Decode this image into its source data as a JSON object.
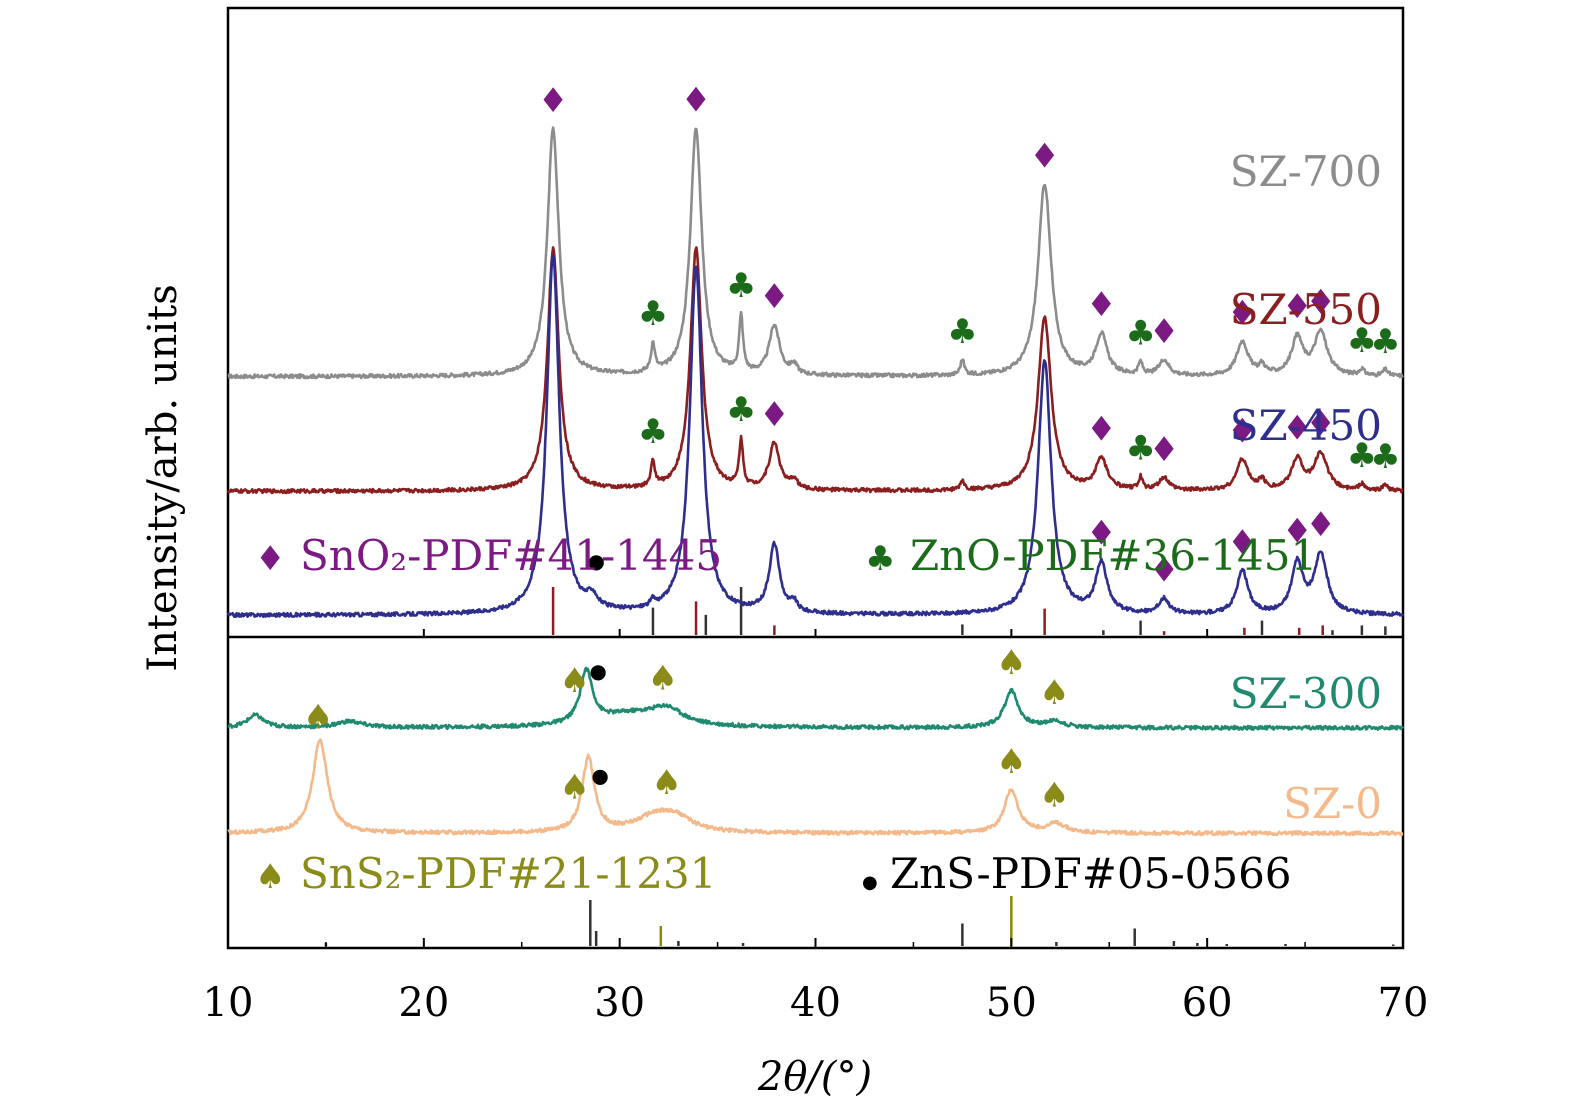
{
  "chart_data": {
    "type": "line",
    "xlabel": "2θ/(°)",
    "ylabel": "Intensity/arb. units",
    "xlim": [
      10,
      70
    ],
    "xticks": [
      "10",
      "20",
      "30",
      "40",
      "50",
      "60",
      "70"
    ],
    "panels": [
      "upper",
      "lower"
    ],
    "series": [
      {
        "name": "SZ-700",
        "panel": "upper",
        "color": "#8c8c8c",
        "baseline": 0.84,
        "peaks": [
          [
            26.6,
            0.8,
            0.35
          ],
          [
            31.7,
            0.09,
            0.12
          ],
          [
            33.9,
            0.8,
            0.35
          ],
          [
            36.2,
            0.18,
            0.12
          ],
          [
            37.9,
            0.16,
            0.32
          ],
          [
            38.9,
            0.03,
            0.2
          ],
          [
            47.5,
            0.05,
            0.12
          ],
          [
            51.7,
            0.62,
            0.4
          ],
          [
            54.6,
            0.13,
            0.35
          ],
          [
            56.6,
            0.04,
            0.12
          ],
          [
            57.8,
            0.05,
            0.3
          ],
          [
            61.8,
            0.11,
            0.35
          ],
          [
            62.8,
            0.03,
            0.2
          ],
          [
            64.6,
            0.12,
            0.35
          ],
          [
            65.8,
            0.14,
            0.4
          ],
          [
            67.9,
            0.02,
            0.15
          ],
          [
            69.1,
            0.02,
            0.15
          ]
        ]
      },
      {
        "name": "SZ-550",
        "panel": "upper",
        "color": "#8b1e1e",
        "baseline": 0.47,
        "peaks": [
          [
            26.6,
            0.78,
            0.35
          ],
          [
            31.7,
            0.08,
            0.12
          ],
          [
            33.9,
            0.78,
            0.35
          ],
          [
            36.2,
            0.15,
            0.12
          ],
          [
            37.9,
            0.15,
            0.32
          ],
          [
            38.9,
            0.03,
            0.2
          ],
          [
            47.5,
            0.03,
            0.12
          ],
          [
            51.7,
            0.56,
            0.4
          ],
          [
            54.6,
            0.1,
            0.35
          ],
          [
            56.6,
            0.04,
            0.12
          ],
          [
            57.8,
            0.04,
            0.3
          ],
          [
            61.8,
            0.1,
            0.35
          ],
          [
            62.8,
            0.03,
            0.2
          ],
          [
            64.6,
            0.1,
            0.35
          ],
          [
            65.8,
            0.12,
            0.4
          ],
          [
            67.9,
            0.02,
            0.15
          ],
          [
            69.1,
            0.02,
            0.15
          ]
        ]
      },
      {
        "name": "SZ-450",
        "panel": "upper",
        "color": "#2e2e8f",
        "baseline": 0.07,
        "peaks": [
          [
            26.6,
            1.16,
            0.38
          ],
          [
            28.6,
            0.04,
            0.3
          ],
          [
            31.7,
            0.02,
            0.15
          ],
          [
            33.9,
            1.12,
            0.38
          ],
          [
            37.9,
            0.22,
            0.32
          ],
          [
            38.9,
            0.03,
            0.2
          ],
          [
            51.7,
            0.82,
            0.4
          ],
          [
            54.6,
            0.16,
            0.35
          ],
          [
            57.8,
            0.05,
            0.3
          ],
          [
            61.8,
            0.14,
            0.35
          ],
          [
            64.6,
            0.16,
            0.35
          ],
          [
            65.8,
            0.19,
            0.4
          ]
        ]
      },
      {
        "name": "SZ-300",
        "panel": "lower",
        "color": "#1f8a70",
        "baseline": 0.71,
        "peaks": [
          [
            11.4,
            0.04,
            0.5
          ],
          [
            16.2,
            0.02,
            0.8
          ],
          [
            28.3,
            0.17,
            0.38
          ],
          [
            30.5,
            0.04,
            2.0
          ],
          [
            32.4,
            0.05,
            1.0
          ],
          [
            50.0,
            0.12,
            0.42
          ],
          [
            52.2,
            0.02,
            0.6
          ]
        ]
      },
      {
        "name": "SZ-0",
        "panel": "lower",
        "color": "#f3b98a",
        "baseline": 0.37,
        "peaks": [
          [
            14.7,
            0.3,
            0.45
          ],
          [
            28.4,
            0.24,
            0.38
          ],
          [
            31.8,
            0.05,
            1.2
          ],
          [
            32.9,
            0.04,
            1.0
          ],
          [
            50.0,
            0.14,
            0.42
          ],
          [
            52.3,
            0.03,
            0.6
          ]
        ]
      }
    ],
    "reference_sticks": [
      {
        "panel": "upper",
        "entries": [
          [
            26.6,
            1.0,
            "#8b1e1e"
          ],
          [
            31.7,
            0.57,
            "#333333"
          ],
          [
            33.9,
            0.7,
            "#8b1e1e"
          ],
          [
            34.4,
            0.42,
            "#333333"
          ],
          [
            36.2,
            1.0,
            "#333333"
          ],
          [
            37.9,
            0.2,
            "#8b1e1e"
          ],
          [
            47.5,
            0.22,
            "#333333"
          ],
          [
            51.7,
            0.55,
            "#8b1e1e"
          ],
          [
            54.7,
            0.1,
            "#333333"
          ],
          [
            56.6,
            0.3,
            "#333333"
          ],
          [
            57.8,
            0.08,
            "#8b1e1e"
          ],
          [
            61.9,
            0.15,
            "#8b1e1e"
          ],
          [
            62.8,
            0.3,
            "#333333"
          ],
          [
            64.7,
            0.15,
            "#8b1e1e"
          ],
          [
            65.9,
            0.2,
            "#8b1e1e"
          ],
          [
            66.4,
            0.1,
            "#333333"
          ],
          [
            67.9,
            0.2,
            "#333333"
          ],
          [
            69.1,
            0.18,
            "#333333"
          ]
        ]
      },
      {
        "panel": "lower",
        "entries": [
          [
            15.0,
            0.06,
            "#333333"
          ],
          [
            28.5,
            0.92,
            "#333333"
          ],
          [
            28.8,
            0.3,
            "#333333"
          ],
          [
            32.1,
            0.4,
            "#8b8b00"
          ],
          [
            33.0,
            0.1,
            "#333333"
          ],
          [
            36.3,
            0.06,
            "#333333"
          ],
          [
            47.5,
            0.45,
            "#333333"
          ],
          [
            50.0,
            1.0,
            "#8b8b00"
          ],
          [
            52.3,
            0.08,
            "#333333"
          ],
          [
            56.3,
            0.35,
            "#333333"
          ],
          [
            58.3,
            0.1,
            "#333333"
          ],
          [
            59.5,
            0.06,
            "#333333"
          ],
          [
            61.0,
            0.04,
            "#333333"
          ],
          [
            64.0,
            0.04,
            "#333333"
          ],
          [
            69.5,
            0.03,
            "#333333"
          ]
        ]
      }
    ],
    "series_labels": [
      {
        "text": "SZ-700",
        "color": "#8c8c8c"
      },
      {
        "text": "SZ-550",
        "color": "#8b1e1e"
      },
      {
        "text": "SZ-450",
        "color": "#2e2e8f"
      },
      {
        "text": "SZ-300",
        "color": "#1f8a70"
      },
      {
        "text": "SZ-0",
        "color": "#f3b98a"
      }
    ],
    "legend": [
      {
        "symbol": "♦",
        "text": "SnO₂-PDF#41-1445",
        "color": "#7b1a82"
      },
      {
        "symbol": "♣",
        "text": "ZnO-PDF#36-1451",
        "color": "#1b6b1b"
      },
      {
        "symbol": "♠",
        "text": "SnS₂-PDF#21-1231",
        "color": "#8b8b1a"
      },
      {
        "symbol": "●",
        "text": "ZnS-PDF#05-0566",
        "color": "#000000"
      }
    ],
    "markers": [
      {
        "symbol": "♦",
        "color": "#7b1a82",
        "x": 26.6,
        "series": "SZ-700"
      },
      {
        "symbol": "♦",
        "color": "#7b1a82",
        "x": 33.9,
        "series": "SZ-700"
      },
      {
        "symbol": "♦",
        "color": "#7b1a82",
        "x": 51.7,
        "series": "SZ-700"
      },
      {
        "symbol": "♣",
        "color": "#1b6b1b",
        "x": 31.7,
        "series": "SZ-700"
      },
      {
        "symbol": "♣",
        "color": "#1b6b1b",
        "x": 36.2,
        "series": "SZ-700"
      },
      {
        "symbol": "♦",
        "color": "#7b1a82",
        "x": 37.9,
        "series": "SZ-700"
      },
      {
        "symbol": "♣",
        "color": "#1b6b1b",
        "x": 47.5,
        "series": "SZ-700"
      },
      {
        "symbol": "♦",
        "color": "#7b1a82",
        "x": 54.6,
        "series": "SZ-700"
      },
      {
        "symbol": "♣",
        "color": "#1b6b1b",
        "x": 56.6,
        "series": "SZ-700"
      },
      {
        "symbol": "♦",
        "color": "#7b1a82",
        "x": 57.8,
        "series": "SZ-700"
      },
      {
        "symbol": "♦",
        "color": "#7b1a82",
        "x": 61.8,
        "series": "SZ-700"
      },
      {
        "symbol": "♦",
        "color": "#7b1a82",
        "x": 64.6,
        "series": "SZ-700"
      },
      {
        "symbol": "♦",
        "color": "#7b1a82",
        "x": 65.8,
        "series": "SZ-700"
      },
      {
        "symbol": "♣",
        "color": "#1b6b1b",
        "x": 67.9,
        "series": "SZ-700"
      },
      {
        "symbol": "♣",
        "color": "#1b6b1b",
        "x": 69.1,
        "series": "SZ-700"
      },
      {
        "symbol": "♣",
        "color": "#1b6b1b",
        "x": 31.7,
        "series": "SZ-550"
      },
      {
        "symbol": "♣",
        "color": "#1b6b1b",
        "x": 36.2,
        "series": "SZ-550"
      },
      {
        "symbol": "♦",
        "color": "#7b1a82",
        "x": 37.9,
        "series": "SZ-550"
      },
      {
        "symbol": "♦",
        "color": "#7b1a82",
        "x": 54.6,
        "series": "SZ-550"
      },
      {
        "symbol": "♣",
        "color": "#1b6b1b",
        "x": 56.6,
        "series": "SZ-550"
      },
      {
        "symbol": "♦",
        "color": "#7b1a82",
        "x": 57.8,
        "series": "SZ-550"
      },
      {
        "symbol": "♦",
        "color": "#7b1a82",
        "x": 61.8,
        "series": "SZ-550"
      },
      {
        "symbol": "♦",
        "color": "#7b1a82",
        "x": 64.6,
        "series": "SZ-550"
      },
      {
        "symbol": "♦",
        "color": "#7b1a82",
        "x": 65.8,
        "series": "SZ-550"
      },
      {
        "symbol": "♣",
        "color": "#1b6b1b",
        "x": 67.9,
        "series": "SZ-550"
      },
      {
        "symbol": "♣",
        "color": "#1b6b1b",
        "x": 69.1,
        "series": "SZ-550"
      },
      {
        "symbol": "●",
        "color": "#000000",
        "x": 28.8,
        "series": "SZ-450"
      },
      {
        "symbol": "♦",
        "color": "#7b1a82",
        "x": 54.6,
        "series": "SZ-450"
      },
      {
        "symbol": "♦",
        "color": "#7b1a82",
        "x": 57.8,
        "series": "SZ-450"
      },
      {
        "symbol": "♦",
        "color": "#7b1a82",
        "x": 61.8,
        "series": "SZ-450"
      },
      {
        "symbol": "♦",
        "color": "#7b1a82",
        "x": 64.6,
        "series": "SZ-450"
      },
      {
        "symbol": "♦",
        "color": "#7b1a82",
        "x": 65.8,
        "series": "SZ-450"
      },
      {
        "symbol": "♠",
        "color": "#8b8b1a",
        "x": 27.7,
        "series": "SZ-300"
      },
      {
        "symbol": "●",
        "color": "#000000",
        "x": 28.9,
        "series": "SZ-300"
      },
      {
        "symbol": "♠",
        "color": "#8b8b1a",
        "x": 32.2,
        "series": "SZ-300"
      },
      {
        "symbol": "♠",
        "color": "#8b8b1a",
        "x": 50.0,
        "series": "SZ-300"
      },
      {
        "symbol": "♠",
        "color": "#8b8b1a",
        "x": 52.2,
        "series": "SZ-300"
      },
      {
        "symbol": "♠",
        "color": "#8b8b1a",
        "x": 14.6,
        "series": "SZ-0"
      },
      {
        "symbol": "♠",
        "color": "#8b8b1a",
        "x": 27.7,
        "series": "SZ-0"
      },
      {
        "symbol": "●",
        "color": "#000000",
        "x": 29.0,
        "series": "SZ-0"
      },
      {
        "symbol": "♠",
        "color": "#8b8b1a",
        "x": 32.4,
        "series": "SZ-0"
      },
      {
        "symbol": "♠",
        "color": "#8b8b1a",
        "x": 50.0,
        "series": "SZ-0"
      },
      {
        "symbol": "♠",
        "color": "#8b8b1a",
        "x": 52.2,
        "series": "SZ-0"
      }
    ],
    "grid": false,
    "legend_placement": "inside, below each panel's curves"
  }
}
